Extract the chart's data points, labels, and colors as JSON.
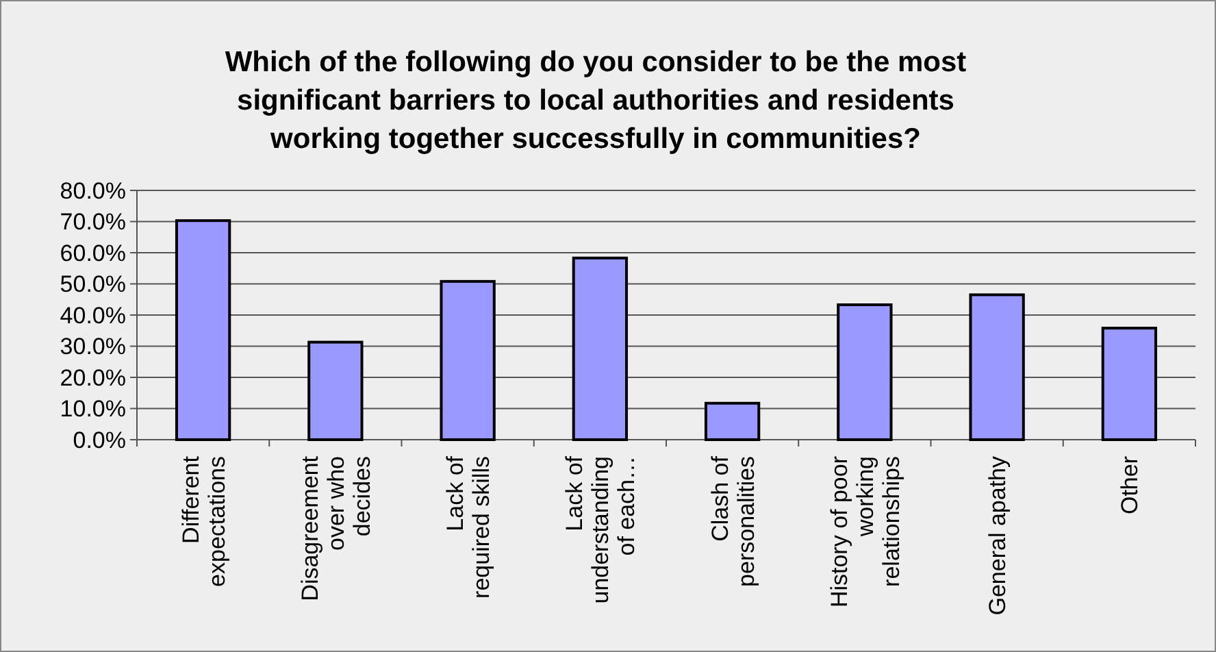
{
  "chart_data": {
    "type": "bar",
    "title": "Which of the following do you consider to be the most significant barriers to local authorities and residents working together successfully in communities?",
    "categories": [
      "Different expectations",
      "Disagreement over who decides",
      "Lack of required skills",
      "Lack of understanding of each…",
      "Clash of personalities",
      "History of poor working relationships",
      "General apathy",
      "Other"
    ],
    "values": [
      70.3,
      31.3,
      50.8,
      58.3,
      11.7,
      43.3,
      46.5,
      35.8
    ],
    "color": "#9999ff",
    "ylim": [
      0,
      80
    ],
    "yticks": [
      {
        "value": 0,
        "label": "0.0%"
      },
      {
        "value": 10,
        "label": "10.0%"
      },
      {
        "value": 20,
        "label": "20.0%"
      },
      {
        "value": 30,
        "label": "30.0%"
      },
      {
        "value": 40,
        "label": "40.0%"
      },
      {
        "value": 50,
        "label": "50.0%"
      },
      {
        "value": 60,
        "label": "60.0%"
      },
      {
        "value": 70,
        "label": "70.0%"
      },
      {
        "value": 80,
        "label": "80.0%"
      }
    ],
    "grid": "y"
  }
}
